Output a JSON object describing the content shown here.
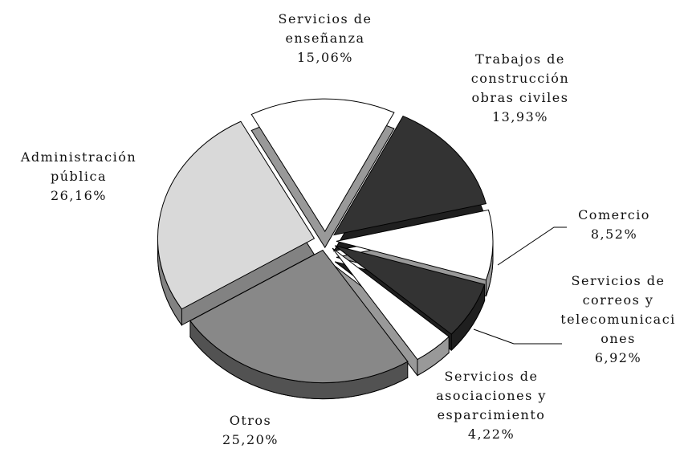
{
  "chart_data": {
    "type": "pie",
    "categories": [
      "Servicios de\nenseñanza",
      "Trabajos de\nconstrucción\nobras civiles",
      "Comercio",
      "Servicios de\ncorreos y\ntelecomunicaci\nones",
      "Servicios de\nasociaciones y\nesparcimiento",
      "Otros",
      "Administración\npública"
    ],
    "values": [
      15.06,
      13.93,
      8.52,
      6.92,
      4.22,
      25.2,
      26.16
    ],
    "value_labels": [
      "15,06%",
      "13,93%",
      "8,52%",
      "6,92%",
      "4,22%",
      "25,20%",
      "26,16%"
    ],
    "colors": [
      "#ffffff",
      "#333333",
      "#ffffff",
      "#333333",
      "#ffffff",
      "#888888",
      "#d9d9d9"
    ]
  }
}
